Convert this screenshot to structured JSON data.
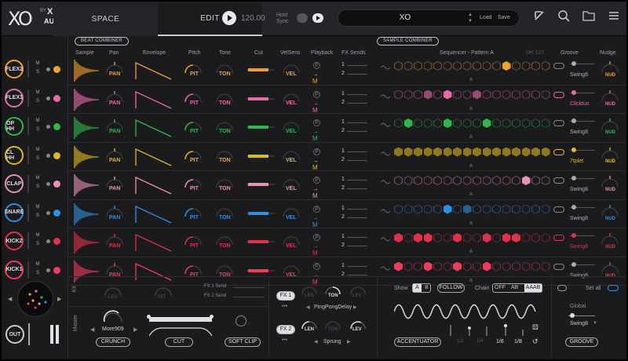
{
  "header": {
    "logo": "XO",
    "by": "BY",
    "brand_line1": "XLN",
    "brand_line2": "AUDIO",
    "tabs": [
      {
        "label": "SPACE"
      },
      {
        "label": "EDIT"
      }
    ],
    "bpm": "120.00",
    "host_sync_line1": "Host",
    "host_sync_line2": "Sync",
    "preset_name": "XO",
    "load_label": "Load",
    "save_label": "Save"
  },
  "beat_combiner": {
    "title": "BEAT COMBINER",
    "columns": [
      "Sample",
      "Pan",
      "Envelope",
      "Pitch",
      "Tone",
      "Cut",
      "VelSens",
      "Playback",
      "FX Sends"
    ]
  },
  "sample_combiner": {
    "title": "SAMPLE COMBINER",
    "sequencer_label": "Sequencer - Pattern A",
    "vel_label": "Vel 127",
    "groove_label": "Groove",
    "nudge_label": "Nudge"
  },
  "channels": [
    {
      "name": "FLEX2",
      "color": "#f0a030",
      "pan": "PAN",
      "pitch": "PIT",
      "tone": "TON",
      "vel": "VEL",
      "send1": "1",
      "send2": "2",
      "groove": "Swing8",
      "nudge": "NUD"
    },
    {
      "name": "FLEX1",
      "color": "#e86aa8",
      "pan": "PAN",
      "pitch": "PIT",
      "tone": "TON",
      "vel": "VEL",
      "send1": "1",
      "send2": "2",
      "groove": "Clicktus",
      "nudge": "NUD"
    },
    {
      "name": "OP HH",
      "color": "#2eb84a",
      "pan": "PAN",
      "pitch": "PIT",
      "tone": "TON",
      "vel": "VEL",
      "send1": "1",
      "send2": "2",
      "groove": "Swing8",
      "nudge": "NUD"
    },
    {
      "name": "CL HH",
      "color": "#e0b820",
      "pan": "PAN",
      "pitch": "PIT",
      "tone": "TON",
      "vel": "VEL",
      "send1": "1",
      "send2": "2",
      "groove": "7tplet",
      "nudge": "NUD"
    },
    {
      "name": "CLAP",
      "color": "#e891b4",
      "pan": "PAN",
      "pitch": "PIT",
      "tone": "TON",
      "vel": "VEL",
      "send1": "1",
      "send2": "2",
      "groove": "Swing8",
      "nudge": "NUD"
    },
    {
      "name": "SNARE",
      "color": "#2f8fe0",
      "pan": "PAN",
      "pitch": "PIT",
      "tone": "TON",
      "vel": "VEL",
      "send1": "1",
      "send2": "2",
      "groove": "Swing8",
      "nudge": "NUD"
    },
    {
      "name": "KICK2",
      "color": "#e0304a",
      "pan": "PAN",
      "pitch": "PIT",
      "tone": "TON",
      "vel": "VEL",
      "send1": "1",
      "send2": "2",
      "groove": "Swing8",
      "nudge": "NUD"
    },
    {
      "name": "KICK1",
      "color": "#f03c5a",
      "pan": "PAN",
      "pitch": "PIT",
      "tone": "TON",
      "vel": "VEL",
      "send1": "1",
      "send2": "2",
      "groove": "Swing8",
      "nudge": "NUD"
    }
  ],
  "row_marker": "A",
  "kit": {
    "label": "Kit",
    "lev": "LEV",
    "pit": "PIT",
    "fx1_send": "FX 1 Send",
    "fx2_send": "FX 2 Send"
  },
  "master": {
    "label": "Master",
    "preset": "More909",
    "crunch": "CRUNCH",
    "cut": "CUT",
    "soft_clip": "SOFT CLIP"
  },
  "fx": {
    "fx1": "FX 1",
    "fx2": "FX 2",
    "len": "LEN",
    "ton": "TON",
    "lev": "LEV",
    "fx1_name": "PingPongDelay",
    "fx2_name": "Sprung"
  },
  "bottom_seq": {
    "show_label": "Show",
    "show_a": "A",
    "show_b": "B",
    "follow": "FOLLOW",
    "chain_label": "Chain",
    "chain_off": "OFF",
    "chain_ab": "AB",
    "chain_aaab": "AAAB",
    "accentuator": "ACCENTUATOR",
    "div1": "1/2",
    "div2": "1/4",
    "div3": "1/6",
    "div4": "1/8"
  },
  "groove_panel": {
    "set_all": "Set all",
    "global": "Global",
    "preset": "Swing8",
    "groove_btn": "GROOVE"
  },
  "out_label": "OUT",
  "colors": {
    "bg": "#1b1b1e",
    "panel": "#252529",
    "text": "#c8c8cc"
  }
}
